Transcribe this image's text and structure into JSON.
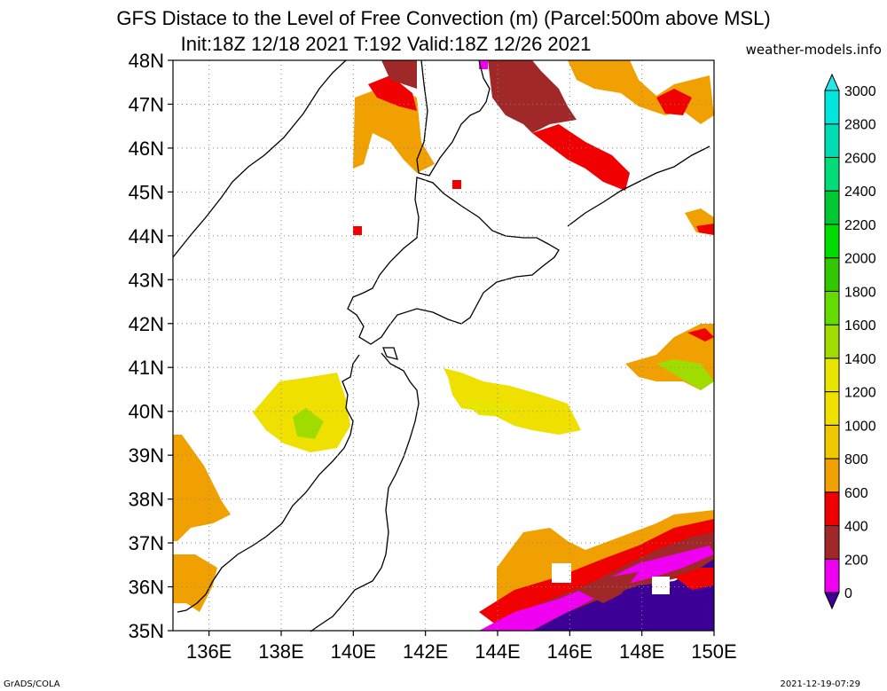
{
  "title_line1": "GFS Distace to the Level of Free Convection (m) (Parcel:500m above MSL)",
  "title_line2": "Init:18Z 12/18 2021 T:192 Valid:18Z 12/26 2021",
  "credit": "weather-models.info",
  "footer_left": "GrADS/COLA",
  "footer_right": "2021-12-19-07:29",
  "map": {
    "lon_range": [
      135,
      150
    ],
    "lat_range": [
      35,
      48
    ],
    "lat_ticks": [
      "35N",
      "36N",
      "37N",
      "38N",
      "39N",
      "40N",
      "41N",
      "42N",
      "43N",
      "44N",
      "45N",
      "46N",
      "47N",
      "48N"
    ],
    "lon_ticks": [
      "136E",
      "138E",
      "140E",
      "142E",
      "144E",
      "146E",
      "148E",
      "150E"
    ]
  },
  "colorbar": {
    "labels": [
      "0",
      "200",
      "400",
      "600",
      "800",
      "1000",
      "1200",
      "1400",
      "1600",
      "1800",
      "2000",
      "2200",
      "2400",
      "2600",
      "2800",
      "3000"
    ],
    "colors": [
      "#3c0096",
      "#f000f0",
      "#a02828",
      "#f00000",
      "#f0a000",
      "#f0c800",
      "#f0e000",
      "#e6e600",
      "#a0dc00",
      "#64dc00",
      "#32c800",
      "#00dc00",
      "#00c832",
      "#00dc78",
      "#00dcb4",
      "#00e6dc"
    ],
    "top_color": "#28e6e6",
    "bottom_color": "#3c0096"
  }
}
